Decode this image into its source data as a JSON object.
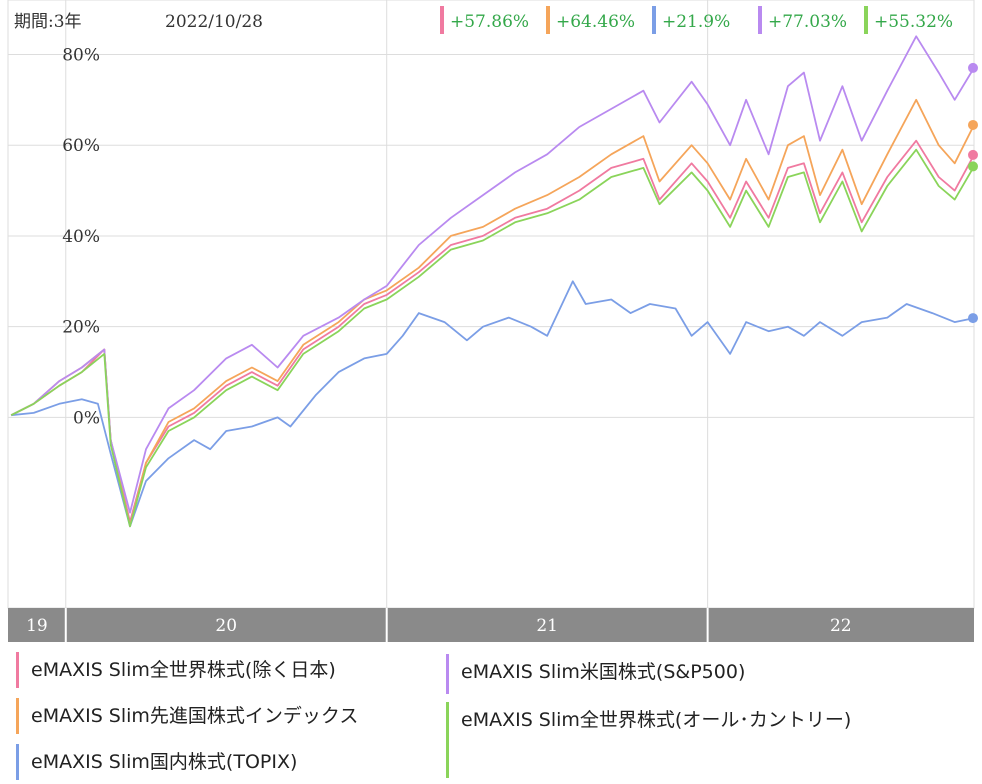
{
  "header": {
    "period_label": "期間:3年",
    "date": "2022/10/28"
  },
  "colors": {
    "pink": "#f07aa0",
    "orange": "#f5a55a",
    "blue": "#7b9ee6",
    "purple": "#b98af0",
    "green": "#8ad45a",
    "change_text": "#34a84a",
    "axis_band": "#8a8a8a",
    "grid": "#dddddd"
  },
  "returns": [
    "+57.86%",
    "+64.46%",
    "+21.9%",
    "+77.03%",
    "+55.32%"
  ],
  "legend": [
    {
      "label": "eMAXIS Slim全世界株式(除く日本)",
      "color": "#f07aa0"
    },
    {
      "label": "eMAXIS Slim先進国株式インデックス",
      "color": "#f5a55a"
    },
    {
      "label": "eMAXIS Slim国内株式(TOPIX)",
      "color": "#7b9ee6"
    },
    {
      "label": "eMAXIS Slim米国株式(S&P500)",
      "color": "#b98af0"
    },
    {
      "label": "eMAXIS Slim全世界株式(オール･カントリー)",
      "color": "#8ad45a"
    }
  ],
  "chart_data": {
    "type": "line",
    "x_tick_labels": [
      "19",
      "20",
      "21",
      "22"
    ],
    "y_tick_labels": [
      "0%",
      "20%",
      "40%",
      "60%",
      "80%"
    ],
    "ylim": [
      -42,
      92
    ],
    "xlim": [
      2019.82,
      2022.83
    ],
    "x_unit": "year",
    "grid": true,
    "series": [
      {
        "name": "eMAXIS Slim全世界株式(除く日本)",
        "color": "#f07aa0",
        "points": [
          [
            2019.83,
            0.5
          ],
          [
            2019.9,
            3
          ],
          [
            2019.98,
            7
          ],
          [
            2020.05,
            10
          ],
          [
            2020.12,
            15
          ],
          [
            2020.14,
            -5
          ],
          [
            2020.2,
            -23
          ],
          [
            2020.25,
            -10
          ],
          [
            2020.32,
            -2
          ],
          [
            2020.4,
            1
          ],
          [
            2020.5,
            7
          ],
          [
            2020.58,
            10
          ],
          [
            2020.66,
            7
          ],
          [
            2020.74,
            15
          ],
          [
            2020.85,
            20
          ],
          [
            2020.93,
            25
          ],
          [
            2021.0,
            27
          ],
          [
            2021.1,
            32
          ],
          [
            2021.2,
            38
          ],
          [
            2021.3,
            40
          ],
          [
            2021.4,
            44
          ],
          [
            2021.5,
            46
          ],
          [
            2021.6,
            50
          ],
          [
            2021.7,
            55
          ],
          [
            2021.8,
            57
          ],
          [
            2021.85,
            48
          ],
          [
            2021.95,
            56
          ],
          [
            2022.0,
            52
          ],
          [
            2022.07,
            44
          ],
          [
            2022.12,
            52
          ],
          [
            2022.19,
            44
          ],
          [
            2022.25,
            55
          ],
          [
            2022.3,
            56
          ],
          [
            2022.35,
            45
          ],
          [
            2022.42,
            54
          ],
          [
            2022.48,
            43
          ],
          [
            2022.56,
            53
          ],
          [
            2022.65,
            61
          ],
          [
            2022.72,
            53
          ],
          [
            2022.77,
            50
          ],
          [
            2022.83,
            57.86
          ]
        ]
      },
      {
        "name": "eMAXIS Slim先進国株式インデックス",
        "color": "#f5a55a",
        "points": [
          [
            2019.83,
            0.5
          ],
          [
            2019.9,
            3
          ],
          [
            2019.98,
            8
          ],
          [
            2020.05,
            11
          ],
          [
            2020.12,
            15
          ],
          [
            2020.14,
            -5
          ],
          [
            2020.2,
            -24
          ],
          [
            2020.25,
            -10
          ],
          [
            2020.32,
            -1
          ],
          [
            2020.4,
            2
          ],
          [
            2020.5,
            8
          ],
          [
            2020.58,
            11
          ],
          [
            2020.66,
            8
          ],
          [
            2020.74,
            16
          ],
          [
            2020.85,
            21
          ],
          [
            2020.93,
            26
          ],
          [
            2021.0,
            28
          ],
          [
            2021.1,
            33
          ],
          [
            2021.2,
            40
          ],
          [
            2021.3,
            42
          ],
          [
            2021.4,
            46
          ],
          [
            2021.5,
            49
          ],
          [
            2021.6,
            53
          ],
          [
            2021.7,
            58
          ],
          [
            2021.8,
            62
          ],
          [
            2021.85,
            52
          ],
          [
            2021.95,
            60
          ],
          [
            2022.0,
            56
          ],
          [
            2022.07,
            48
          ],
          [
            2022.12,
            57
          ],
          [
            2022.19,
            48
          ],
          [
            2022.25,
            60
          ],
          [
            2022.3,
            62
          ],
          [
            2022.35,
            49
          ],
          [
            2022.42,
            59
          ],
          [
            2022.48,
            47
          ],
          [
            2022.56,
            58
          ],
          [
            2022.65,
            70
          ],
          [
            2022.72,
            60
          ],
          [
            2022.77,
            56
          ],
          [
            2022.83,
            64.46
          ]
        ]
      },
      {
        "name": "eMAXIS Slim国内株式(TOPIX)",
        "color": "#7b9ee6",
        "points": [
          [
            2019.83,
            0.5
          ],
          [
            2019.9,
            1
          ],
          [
            2019.98,
            3
          ],
          [
            2020.05,
            4
          ],
          [
            2020.1,
            3
          ],
          [
            2020.14,
            -8
          ],
          [
            2020.2,
            -24
          ],
          [
            2020.25,
            -14
          ],
          [
            2020.32,
            -9
          ],
          [
            2020.4,
            -5
          ],
          [
            2020.45,
            -7
          ],
          [
            2020.5,
            -3
          ],
          [
            2020.58,
            -2
          ],
          [
            2020.66,
            0
          ],
          [
            2020.7,
            -2
          ],
          [
            2020.78,
            5
          ],
          [
            2020.85,
            10
          ],
          [
            2020.93,
            13
          ],
          [
            2021.0,
            14
          ],
          [
            2021.05,
            18
          ],
          [
            2021.1,
            23
          ],
          [
            2021.18,
            21
          ],
          [
            2021.25,
            17
          ],
          [
            2021.3,
            20
          ],
          [
            2021.38,
            22
          ],
          [
            2021.45,
            20
          ],
          [
            2021.5,
            18
          ],
          [
            2021.58,
            30
          ],
          [
            2021.62,
            25
          ],
          [
            2021.7,
            26
          ],
          [
            2021.76,
            23
          ],
          [
            2021.82,
            25
          ],
          [
            2021.9,
            24
          ],
          [
            2021.95,
            18
          ],
          [
            2022.0,
            21
          ],
          [
            2022.07,
            14
          ],
          [
            2022.12,
            21
          ],
          [
            2022.19,
            19
          ],
          [
            2022.25,
            20
          ],
          [
            2022.3,
            18
          ],
          [
            2022.35,
            21
          ],
          [
            2022.42,
            18
          ],
          [
            2022.48,
            21
          ],
          [
            2022.56,
            22
          ],
          [
            2022.62,
            25
          ],
          [
            2022.7,
            23
          ],
          [
            2022.77,
            21
          ],
          [
            2022.83,
            21.9
          ]
        ]
      },
      {
        "name": "eMAXIS Slim米国株式(S&P500)",
        "color": "#b98af0",
        "points": [
          [
            2019.83,
            0.5
          ],
          [
            2019.9,
            3
          ],
          [
            2019.98,
            8
          ],
          [
            2020.05,
            11
          ],
          [
            2020.12,
            15
          ],
          [
            2020.14,
            -5
          ],
          [
            2020.2,
            -21
          ],
          [
            2020.25,
            -7
          ],
          [
            2020.32,
            2
          ],
          [
            2020.4,
            6
          ],
          [
            2020.5,
            13
          ],
          [
            2020.58,
            16
          ],
          [
            2020.66,
            11
          ],
          [
            2020.74,
            18
          ],
          [
            2020.85,
            22
          ],
          [
            2020.93,
            26
          ],
          [
            2021.0,
            29
          ],
          [
            2021.1,
            38
          ],
          [
            2021.2,
            44
          ],
          [
            2021.3,
            49
          ],
          [
            2021.4,
            54
          ],
          [
            2021.5,
            58
          ],
          [
            2021.6,
            64
          ],
          [
            2021.7,
            68
          ],
          [
            2021.8,
            72
          ],
          [
            2021.85,
            65
          ],
          [
            2021.95,
            74
          ],
          [
            2022.0,
            69
          ],
          [
            2022.07,
            60
          ],
          [
            2022.12,
            70
          ],
          [
            2022.19,
            58
          ],
          [
            2022.25,
            73
          ],
          [
            2022.3,
            76
          ],
          [
            2022.35,
            61
          ],
          [
            2022.42,
            73
          ],
          [
            2022.48,
            61
          ],
          [
            2022.56,
            72
          ],
          [
            2022.65,
            84
          ],
          [
            2022.72,
            76
          ],
          [
            2022.77,
            70
          ],
          [
            2022.83,
            77.03
          ]
        ]
      },
      {
        "name": "eMAXIS Slim全世界株式(オール･カントリー)",
        "color": "#8ad45a",
        "points": [
          [
            2019.83,
            0.5
          ],
          [
            2019.9,
            3
          ],
          [
            2019.98,
            7
          ],
          [
            2020.05,
            10
          ],
          [
            2020.12,
            14
          ],
          [
            2020.14,
            -6
          ],
          [
            2020.2,
            -24
          ],
          [
            2020.25,
            -11
          ],
          [
            2020.32,
            -3
          ],
          [
            2020.4,
            0
          ],
          [
            2020.5,
            6
          ],
          [
            2020.58,
            9
          ],
          [
            2020.66,
            6
          ],
          [
            2020.74,
            14
          ],
          [
            2020.85,
            19
          ],
          [
            2020.93,
            24
          ],
          [
            2021.0,
            26
          ],
          [
            2021.1,
            31
          ],
          [
            2021.2,
            37
          ],
          [
            2021.3,
            39
          ],
          [
            2021.4,
            43
          ],
          [
            2021.5,
            45
          ],
          [
            2021.6,
            48
          ],
          [
            2021.7,
            53
          ],
          [
            2021.8,
            55
          ],
          [
            2021.85,
            47
          ],
          [
            2021.95,
            54
          ],
          [
            2022.0,
            50
          ],
          [
            2022.07,
            42
          ],
          [
            2022.12,
            50
          ],
          [
            2022.19,
            42
          ],
          [
            2022.25,
            53
          ],
          [
            2022.3,
            54
          ],
          [
            2022.35,
            43
          ],
          [
            2022.42,
            52
          ],
          [
            2022.48,
            41
          ],
          [
            2022.56,
            51
          ],
          [
            2022.65,
            59
          ],
          [
            2022.72,
            51
          ],
          [
            2022.77,
            48
          ],
          [
            2022.83,
            55.32
          ]
        ]
      }
    ]
  }
}
